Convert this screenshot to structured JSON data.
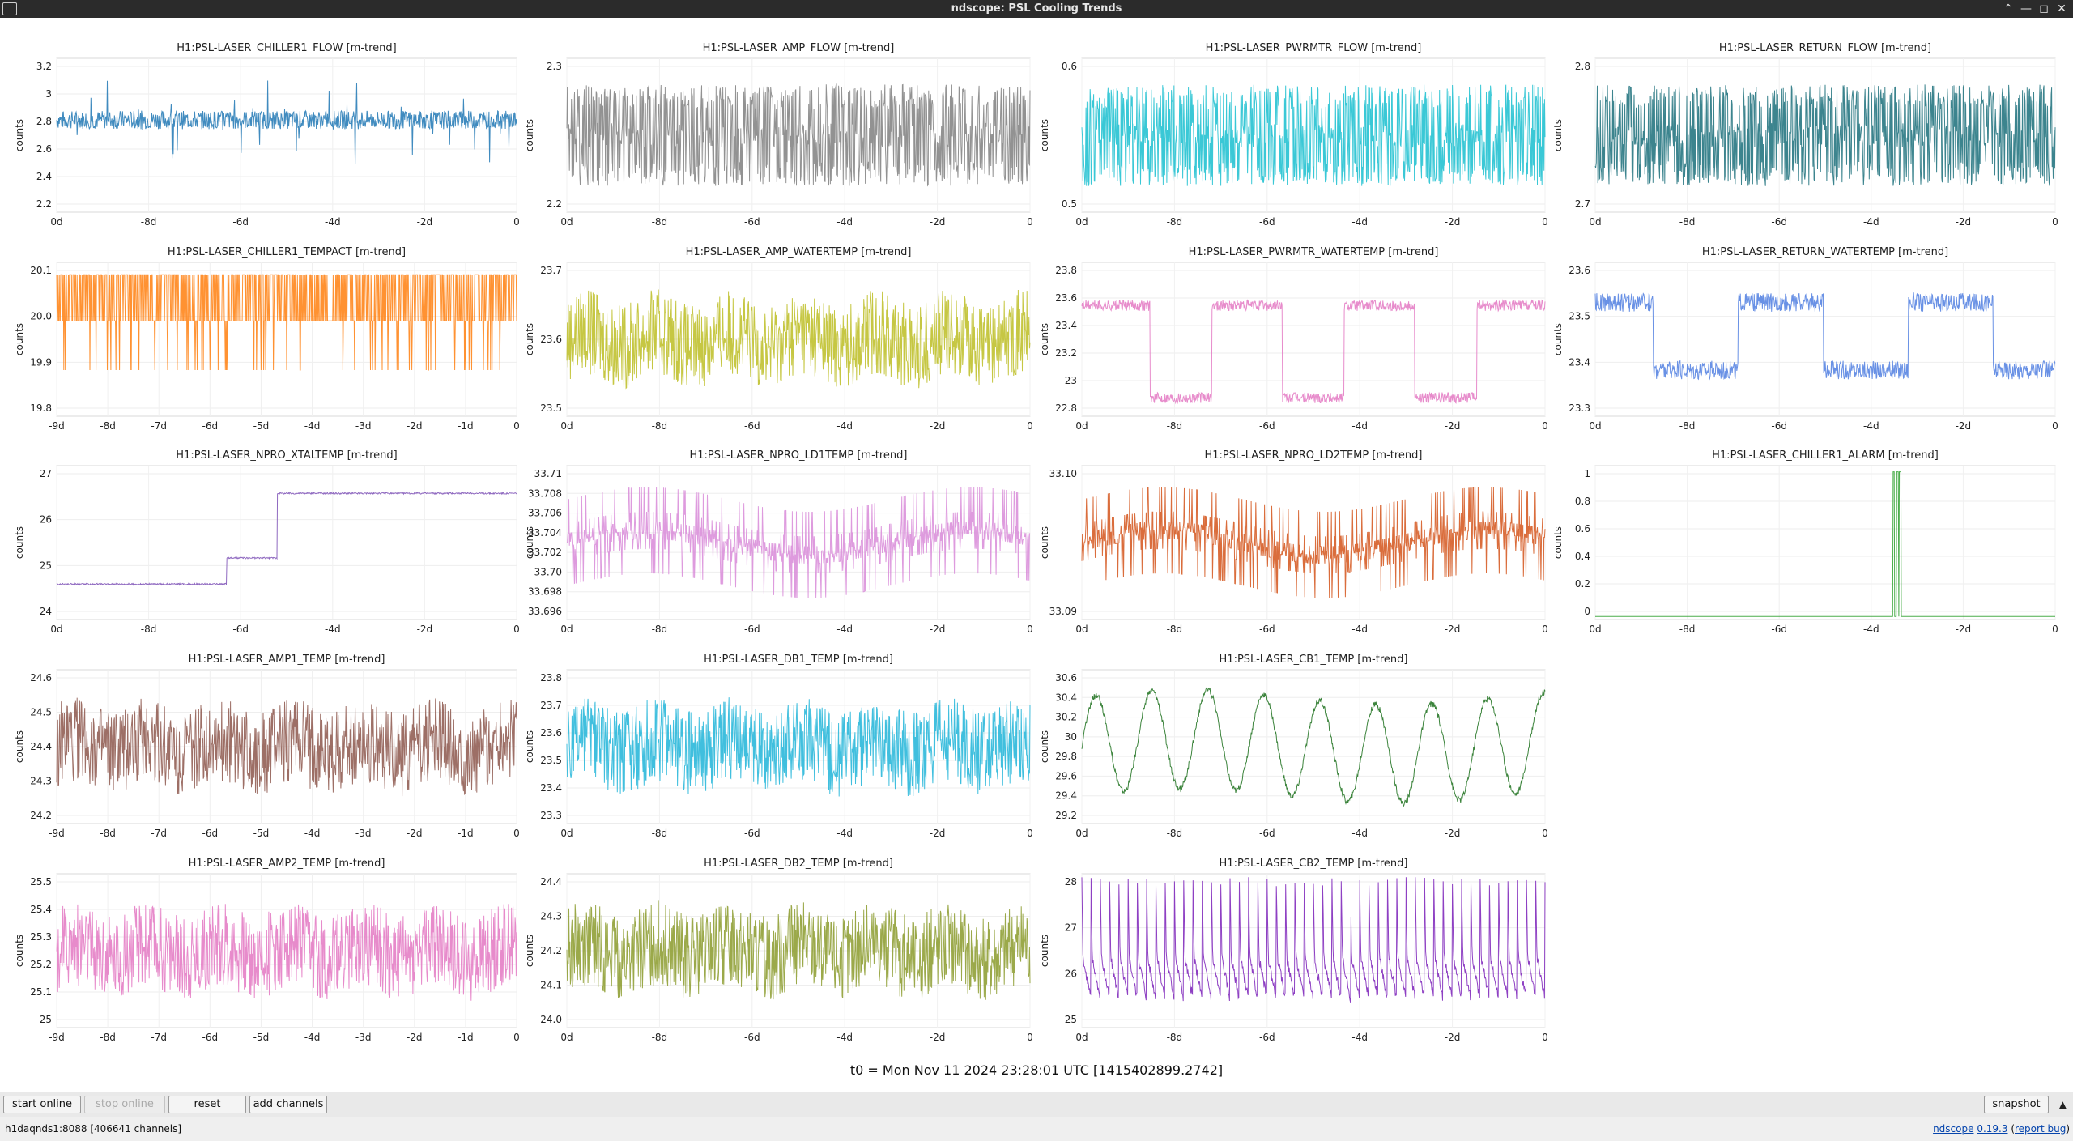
{
  "window": {
    "title": "ndscope: PSL Cooling Trends",
    "controls": [
      "⌃",
      "—",
      "◻",
      "✕"
    ]
  },
  "t0_label": "t0 = Mon Nov 11 2024 23:28:01 UTC [1415402899.2742]",
  "toolbar": {
    "start_online": "start online",
    "stop_online": "stop online",
    "reset": "reset",
    "add_channels": "add channels",
    "snapshot": "snapshot",
    "collapse_icon": "▲"
  },
  "status": {
    "server": "h1daqnds1:8088  [406641 channels]",
    "app_name": "ndscope",
    "version": "0.19.3",
    "report_bug": "report bug"
  },
  "plots": [
    {
      "title": "H1:PSL-LASER_CHILLER1_FLOW [m-trend]",
      "ylabel": "counts",
      "color": "#1f77b4",
      "yticks": [
        "3.2",
        "3",
        "2.8",
        "2.6",
        "2.4",
        "2.2"
      ],
      "xticks": [
        "0d",
        "-8d",
        "-6d",
        "-4d",
        "-2d",
        "0"
      ],
      "pattern": "flow"
    },
    {
      "title": "H1:PSL-LASER_AMP_FLOW [m-trend]",
      "ylabel": "counts",
      "color": "#7f7f7f",
      "yticks": [
        "2.3",
        "2.2"
      ],
      "xticks": [
        "0d",
        "-8d",
        "-6d",
        "-4d",
        "-2d",
        "0"
      ],
      "pattern": "bands"
    },
    {
      "title": "H1:PSL-LASER_PWRMTR_FLOW [m-trend]",
      "ylabel": "counts",
      "color": "#17becf",
      "yticks": [
        "0.6",
        "0.5"
      ],
      "xticks": [
        "0d",
        "-8d",
        "-6d",
        "-4d",
        "-2d",
        "0"
      ],
      "pattern": "bands"
    },
    {
      "title": "H1:PSL-LASER_RETURN_FLOW [m-trend]",
      "ylabel": "counts",
      "color": "#1a6f7a",
      "yticks": [
        "2.8",
        "2.7"
      ],
      "xticks": [
        "0d",
        "-8d",
        "-6d",
        "-4d",
        "-2d",
        "0"
      ],
      "pattern": "bands"
    },
    {
      "title": "H1:PSL-LASER_CHILLER1_TEMPACT [m-trend]",
      "ylabel": "counts",
      "color": "#ff7f0e",
      "yticks": [
        "20.1",
        "20.0",
        "19.9",
        "19.8"
      ],
      "xticks": [
        "-9d",
        "-8d",
        "-7d",
        "-6d",
        "-5d",
        "-4d",
        "-3d",
        "-2d",
        "-1d",
        "0"
      ],
      "pattern": "toggle"
    },
    {
      "title": "H1:PSL-LASER_AMP_WATERTEMP [m-trend]",
      "ylabel": "counts",
      "color": "#bcbd22",
      "yticks": [
        "23.7",
        "23.6",
        "23.5"
      ],
      "xticks": [
        "0d",
        "-8d",
        "-6d",
        "-4d",
        "-2d",
        "0"
      ],
      "pattern": "noise"
    },
    {
      "title": "H1:PSL-LASER_PWRMTR_WATERTEMP [m-trend]",
      "ylabel": "counts",
      "color": "#e377c2",
      "yticks": [
        "23.8",
        "23.6",
        "23.4",
        "23.2",
        "23",
        "22.8"
      ],
      "xticks": [
        "0d",
        "-8d",
        "-6d",
        "-4d",
        "-2d",
        "0"
      ],
      "pattern": "square"
    },
    {
      "title": "H1:PSL-LASER_RETURN_WATERTEMP [m-trend]",
      "ylabel": "counts",
      "color": "#4f7ee0",
      "yticks": [
        "23.6",
        "23.5",
        "23.4",
        "23.3"
      ],
      "xticks": [
        "0d",
        "-8d",
        "-6d",
        "-4d",
        "-2d",
        "0"
      ],
      "pattern": "square2"
    },
    {
      "title": "H1:PSL-LASER_NPRO_XTALTEMP [m-trend]",
      "ylabel": "counts",
      "color": "#7b4fb5",
      "yticks": [
        "27",
        "26",
        "25",
        "24"
      ],
      "xticks": [
        "0d",
        "-8d",
        "-6d",
        "-4d",
        "-2d",
        "0"
      ],
      "pattern": "step"
    },
    {
      "title": "H1:PSL-LASER_NPRO_LD1TEMP [m-trend]",
      "ylabel": "counts",
      "color": "#d88ad8",
      "yticks": [
        "33.71",
        "33.708",
        "33.706",
        "33.704",
        "33.702",
        "33.70",
        "33.698",
        "33.696"
      ],
      "xticks": [
        "0d",
        "-8d",
        "-6d",
        "-4d",
        "-2d",
        "0"
      ],
      "pattern": "quant"
    },
    {
      "title": "H1:PSL-LASER_NPRO_LD2TEMP [m-trend]",
      "ylabel": "counts",
      "color": "#d4531a",
      "yticks": [
        "33.10",
        "33.09"
      ],
      "xticks": [
        "0d",
        "-8d",
        "-6d",
        "-4d",
        "-2d",
        "0"
      ],
      "pattern": "quant"
    },
    {
      "title": "H1:PSL-LASER_CHILLER1_ALARM [m-trend]",
      "ylabel": "counts",
      "color": "#2ca02c",
      "yticks": [
        "1",
        "0.8",
        "0.6",
        "0.4",
        "0.2",
        "0"
      ],
      "xticks": [
        "0d",
        "-8d",
        "-6d",
        "-4d",
        "-2d",
        "0"
      ],
      "pattern": "alarm"
    },
    {
      "title": "H1:PSL-LASER_AMP1_TEMP [m-trend]",
      "ylabel": "counts",
      "color": "#8c564b",
      "yticks": [
        "24.6",
        "24.5",
        "24.4",
        "24.3",
        "24.2"
      ],
      "xticks": [
        "-9d",
        "-8d",
        "-7d",
        "-6d",
        "-5d",
        "-4d",
        "-3d",
        "-2d",
        "-1d",
        "0"
      ],
      "pattern": "noise"
    },
    {
      "title": "H1:PSL-LASER_DB1_TEMP [m-trend]",
      "ylabel": "counts",
      "color": "#1fb4d8",
      "yticks": [
        "23.8",
        "23.7",
        "23.6",
        "23.5",
        "23.4",
        "23.3"
      ],
      "xticks": [
        "0d",
        "-8d",
        "-6d",
        "-4d",
        "-2d",
        "0"
      ],
      "pattern": "noise"
    },
    {
      "title": "H1:PSL-LASER_CB1_TEMP [m-trend]",
      "ylabel": "counts",
      "color": "#1a6e1a",
      "yticks": [
        "30.6",
        "30.4",
        "30.2",
        "30",
        "29.8",
        "29.6",
        "29.4",
        "29.2"
      ],
      "xticks": [
        "0d",
        "-8d",
        "-6d",
        "-4d",
        "-2d",
        "0"
      ],
      "pattern": "wave"
    },
    {
      "title": "H1:PSL-LASER_AMP2_TEMP [m-trend]",
      "ylabel": "counts",
      "color": "#e377c2",
      "yticks": [
        "25.5",
        "25.4",
        "25.3",
        "25.2",
        "25.1",
        "25"
      ],
      "xticks": [
        "-9d",
        "-8d",
        "-7d",
        "-6d",
        "-5d",
        "-4d",
        "-3d",
        "-2d",
        "-1d",
        "0"
      ],
      "pattern": "noise"
    },
    {
      "title": "H1:PSL-LASER_DB2_TEMP [m-trend]",
      "ylabel": "counts",
      "color": "#8a9a2a",
      "yticks": [
        "24.4",
        "24.3",
        "24.2",
        "24.1",
        "24.0"
      ],
      "xticks": [
        "0d",
        "-8d",
        "-6d",
        "-4d",
        "-2d",
        "0"
      ],
      "pattern": "noise"
    },
    {
      "title": "H1:PSL-LASER_CB2_TEMP [m-trend]",
      "ylabel": "counts",
      "color": "#7a1fb8",
      "yticks": [
        "28",
        "27",
        "26",
        "25"
      ],
      "xticks": [
        "0d",
        "-8d",
        "-6d",
        "-4d",
        "-2d",
        "0"
      ],
      "pattern": "sawtooth"
    }
  ]
}
